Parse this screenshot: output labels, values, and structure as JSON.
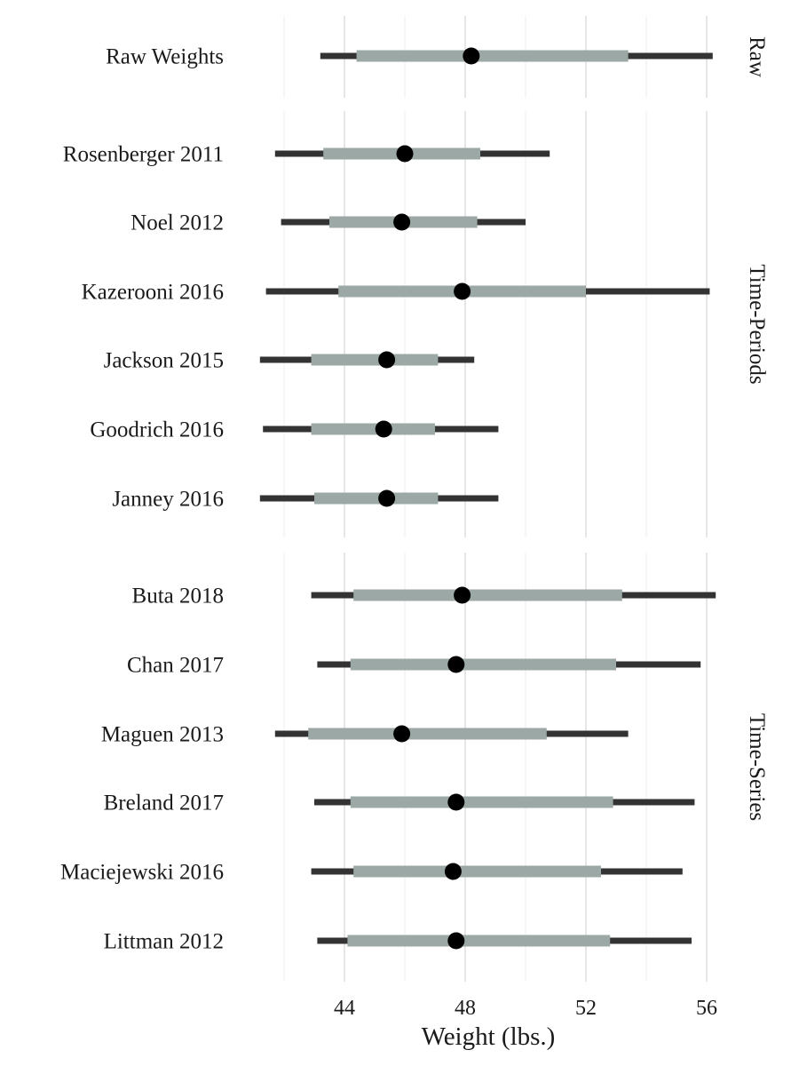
{
  "chart_data": {
    "type": "interval",
    "xlabel": "Weight (lbs.)",
    "ylabel": "",
    "xlim": [
      40.0,
      57.2
    ],
    "xticks": [
      44,
      48,
      52,
      56
    ],
    "grid": true,
    "legend": "none",
    "colors": {
      "outer_interval": "#333333",
      "inner_interval": "#9ba8a6",
      "point": "#000000"
    },
    "panels": [
      {
        "name": "Raw",
        "rows": [
          {
            "label": "Raw Weights",
            "outer": [
              43.2,
              56.2
            ],
            "inner": [
              44.4,
              53.4
            ],
            "point": 48.2
          }
        ]
      },
      {
        "name": "Time-Periods",
        "rows": [
          {
            "label": "Rosenberger 2011",
            "outer": [
              41.7,
              50.8
            ],
            "inner": [
              43.3,
              48.5
            ],
            "point": 46.0
          },
          {
            "label": "Noel 2012",
            "outer": [
              41.9,
              50.0
            ],
            "inner": [
              43.5,
              48.4
            ],
            "point": 45.9
          },
          {
            "label": "Kazerooni 2016",
            "outer": [
              41.4,
              56.1
            ],
            "inner": [
              43.8,
              52.0
            ],
            "point": 47.9
          },
          {
            "label": "Jackson 2015",
            "outer": [
              41.2,
              48.3
            ],
            "inner": [
              42.9,
              47.1
            ],
            "point": 45.4
          },
          {
            "label": "Goodrich 2016",
            "outer": [
              41.3,
              49.1
            ],
            "inner": [
              42.9,
              47.0
            ],
            "point": 45.3
          },
          {
            "label": "Janney 2016",
            "outer": [
              41.2,
              49.1
            ],
            "inner": [
              43.0,
              47.1
            ],
            "point": 45.4
          }
        ]
      },
      {
        "name": "Time-Series",
        "rows": [
          {
            "label": "Buta 2018",
            "outer": [
              42.9,
              56.3
            ],
            "inner": [
              44.3,
              53.2
            ],
            "point": 47.9
          },
          {
            "label": "Chan 2017",
            "outer": [
              43.1,
              55.8
            ],
            "inner": [
              44.2,
              53.0
            ],
            "point": 47.7
          },
          {
            "label": "Maguen 2013",
            "outer": [
              41.7,
              53.4
            ],
            "inner": [
              42.8,
              50.7
            ],
            "point": 45.9
          },
          {
            "label": "Breland 2017",
            "outer": [
              43.0,
              55.6
            ],
            "inner": [
              44.2,
              52.9
            ],
            "point": 47.7
          },
          {
            "label": "Maciejewski 2016",
            "outer": [
              42.9,
              55.2
            ],
            "inner": [
              44.3,
              52.5
            ],
            "point": 47.6
          },
          {
            "label": "Littman 2012",
            "outer": [
              43.1,
              55.5
            ],
            "inner": [
              44.1,
              52.8
            ],
            "point": 47.7
          }
        ]
      }
    ]
  }
}
